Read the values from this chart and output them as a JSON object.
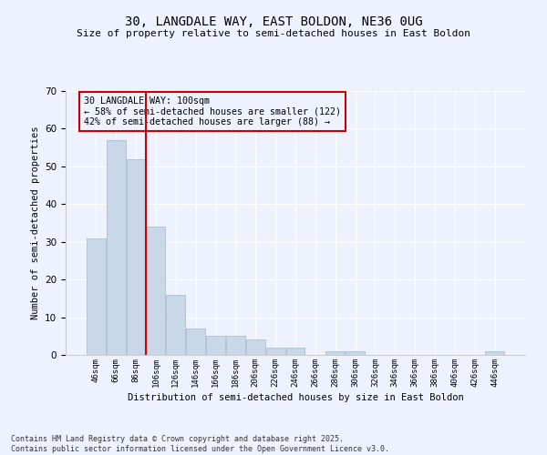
{
  "title": "30, LANGDALE WAY, EAST BOLDON, NE36 0UG",
  "subtitle": "Size of property relative to semi-detached houses in East Boldon",
  "xlabel": "Distribution of semi-detached houses by size in East Boldon",
  "ylabel": "Number of semi-detached properties",
  "bar_labels": [
    "46sqm",
    "66sqm",
    "86sqm",
    "106sqm",
    "126sqm",
    "146sqm",
    "166sqm",
    "186sqm",
    "206sqm",
    "226sqm",
    "246sqm",
    "266sqm",
    "286sqm",
    "306sqm",
    "326sqm",
    "346sqm",
    "366sqm",
    "386sqm",
    "406sqm",
    "426sqm",
    "446sqm"
  ],
  "bar_values": [
    31,
    57,
    52,
    34,
    16,
    7,
    5,
    5,
    4,
    2,
    2,
    0,
    1,
    1,
    0,
    0,
    0,
    0,
    0,
    0,
    1
  ],
  "bar_color": "#c8d8e8",
  "bar_edge_color": "#a0b8d0",
  "vline_x": 2.5,
  "vline_color": "#cc0000",
  "annotation_title": "30 LANGDALE WAY: 100sqm",
  "annotation_line1": "← 58% of semi-detached houses are smaller (122)",
  "annotation_line2": "42% of semi-detached houses are larger (88) →",
  "annotation_box_color": "#cc0000",
  "ylim": [
    0,
    70
  ],
  "background_color": "#eef2ff",
  "grid_color": "#ffffff",
  "footer1": "Contains HM Land Registry data © Crown copyright and database right 2025.",
  "footer2": "Contains public sector information licensed under the Open Government Licence v3.0."
}
